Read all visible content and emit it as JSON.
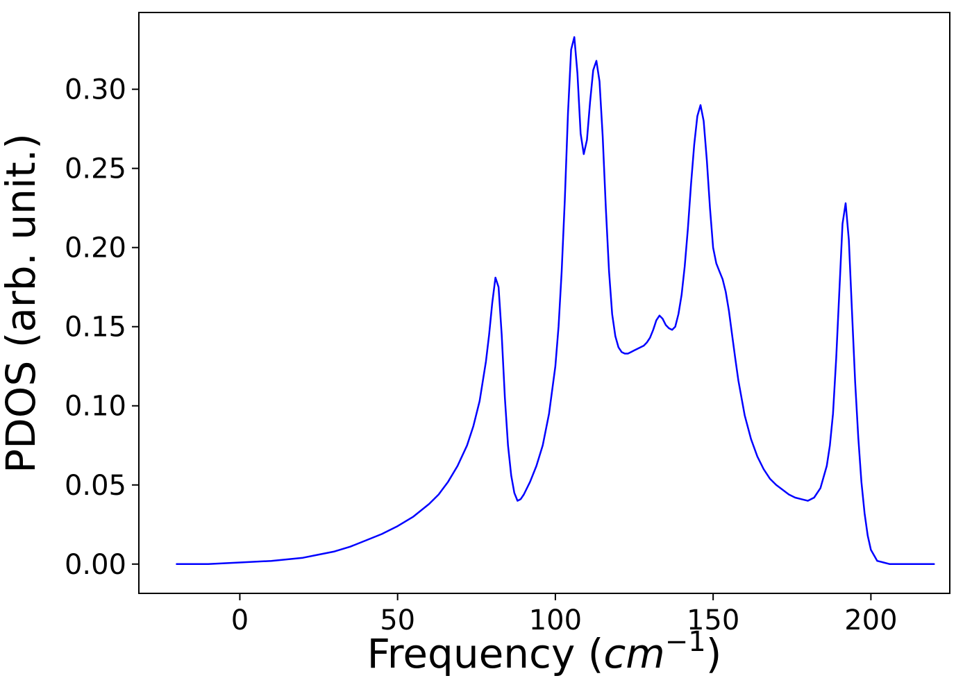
{
  "figure": {
    "background": "#ffffff"
  },
  "chart_data": {
    "type": "line",
    "title": "",
    "xlabel_parts": {
      "prefix": "Frequency (",
      "italic": "cm",
      "superscript": "−1",
      "suffix": ")"
    },
    "xlabel_plain": "Frequency (cm^-1)",
    "ylabel": "PDOS (arb. unit.)",
    "x_ticks": [
      0,
      50,
      100,
      150,
      200
    ],
    "x_tick_labels": [
      "0",
      "50",
      "100",
      "150",
      "200"
    ],
    "y_ticks": [
      0.0,
      0.05,
      0.1,
      0.15,
      0.2,
      0.25,
      0.3
    ],
    "y_tick_labels": [
      "0.00",
      "0.05",
      "0.10",
      "0.15",
      "0.20",
      "0.25",
      "0.30"
    ],
    "xlim": [
      -32,
      225
    ],
    "ylim": [
      -0.0185,
      0.3485
    ],
    "grid": false,
    "legend": "none",
    "line_color": "#0000ff",
    "axis_color": "#000000",
    "series": [
      {
        "name": "PDOS",
        "x": [
          -20,
          -10,
          0,
          10,
          20,
          25,
          30,
          35,
          40,
          45,
          50,
          55,
          60,
          63,
          66,
          69,
          72,
          74,
          76,
          78,
          79,
          80,
          81,
          82,
          83,
          84,
          85,
          86,
          87,
          88,
          89,
          90,
          92,
          94,
          96,
          98,
          100,
          101,
          102,
          103,
          104,
          105,
          106,
          107,
          108,
          109,
          110,
          111,
          112,
          113,
          114,
          115,
          116,
          117,
          118,
          119,
          120,
          121,
          122,
          123,
          124,
          125,
          126,
          127,
          128,
          129,
          130,
          131,
          132,
          133,
          134,
          135,
          136,
          137,
          138,
          139,
          140,
          141,
          142,
          143,
          144,
          145,
          146,
          147,
          148,
          149,
          150,
          151,
          152,
          153,
          154,
          155,
          156,
          157,
          158,
          160,
          162,
          164,
          166,
          168,
          170,
          172,
          174,
          176,
          178,
          180,
          182,
          184,
          186,
          187,
          188,
          189,
          190,
          191,
          192,
          193,
          194,
          195,
          196,
          197,
          198,
          199,
          200,
          202,
          204,
          206,
          210,
          215,
          220
        ],
        "y": [
          0.0,
          0.0,
          0.001,
          0.002,
          0.004,
          0.006,
          0.008,
          0.011,
          0.015,
          0.019,
          0.024,
          0.03,
          0.038,
          0.044,
          0.052,
          0.062,
          0.075,
          0.087,
          0.103,
          0.128,
          0.145,
          0.165,
          0.181,
          0.175,
          0.145,
          0.105,
          0.075,
          0.056,
          0.045,
          0.04,
          0.041,
          0.044,
          0.052,
          0.062,
          0.075,
          0.095,
          0.125,
          0.15,
          0.185,
          0.23,
          0.285,
          0.325,
          0.333,
          0.31,
          0.272,
          0.259,
          0.268,
          0.292,
          0.312,
          0.318,
          0.305,
          0.27,
          0.225,
          0.185,
          0.158,
          0.144,
          0.137,
          0.134,
          0.133,
          0.133,
          0.134,
          0.135,
          0.136,
          0.137,
          0.138,
          0.14,
          0.143,
          0.148,
          0.154,
          0.157,
          0.155,
          0.151,
          0.149,
          0.148,
          0.15,
          0.158,
          0.17,
          0.188,
          0.212,
          0.24,
          0.265,
          0.283,
          0.29,
          0.28,
          0.255,
          0.225,
          0.2,
          0.19,
          0.185,
          0.18,
          0.172,
          0.16,
          0.145,
          0.13,
          0.116,
          0.094,
          0.079,
          0.068,
          0.06,
          0.054,
          0.05,
          0.047,
          0.044,
          0.042,
          0.041,
          0.04,
          0.042,
          0.048,
          0.062,
          0.075,
          0.095,
          0.13,
          0.172,
          0.215,
          0.228,
          0.205,
          0.16,
          0.115,
          0.08,
          0.052,
          0.032,
          0.018,
          0.009,
          0.002,
          0.001,
          0.0,
          0.0,
          0.0,
          0.0
        ]
      }
    ]
  }
}
